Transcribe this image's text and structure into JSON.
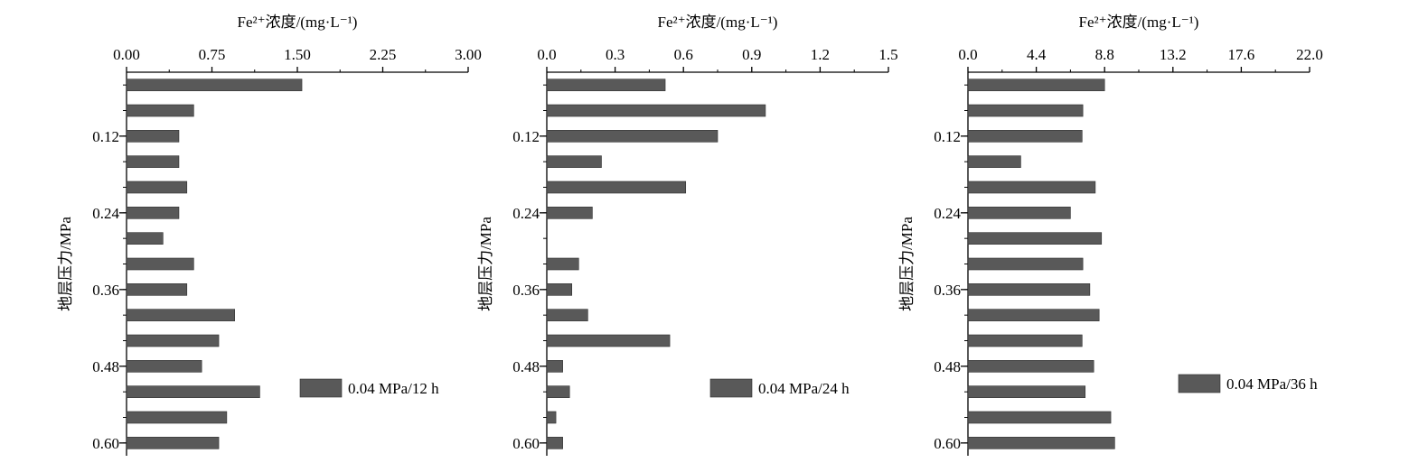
{
  "chart_data": [
    {
      "type": "bar",
      "orientation": "horizontal",
      "xlabel": "Fe²⁺浓度/(mg·L⁻¹)",
      "ylabel": "地层压力/MPa",
      "xlim": [
        0,
        3.0
      ],
      "xticks": [
        "0.00",
        "0.75",
        "1.50",
        "2.25",
        "3.00"
      ],
      "yticks": [
        "0.12",
        "0.24",
        "0.36",
        "0.48",
        "0.60"
      ],
      "ylim": [
        0.02,
        0.62
      ],
      "categories": [
        0.04,
        0.08,
        0.12,
        0.16,
        0.2,
        0.24,
        0.28,
        0.32,
        0.36,
        0.4,
        0.44,
        0.48,
        0.52,
        0.56,
        0.6
      ],
      "series": [
        {
          "name": "0.04 MPa/12 h",
          "values": [
            1.54,
            0.59,
            0.46,
            0.46,
            0.53,
            0.46,
            0.32,
            0.59,
            0.53,
            0.95,
            0.81,
            0.66,
            1.17,
            0.88,
            0.81
          ]
        }
      ],
      "legend_position": "lower-right"
    },
    {
      "type": "bar",
      "orientation": "horizontal",
      "xlabel": "Fe²⁺浓度/(mg·L⁻¹)",
      "ylabel": "地层压力/MPa",
      "xlim": [
        0,
        1.5
      ],
      "xticks": [
        "0.0",
        "0.3",
        "0.6",
        "0.9",
        "1.2",
        "1.5"
      ],
      "yticks": [
        "0.12",
        "0.24",
        "0.36",
        "0.48",
        "0.60"
      ],
      "ylim": [
        0.02,
        0.62
      ],
      "categories": [
        0.04,
        0.08,
        0.12,
        0.16,
        0.2,
        0.24,
        0.28,
        0.32,
        0.36,
        0.4,
        0.44,
        0.48,
        0.52,
        0.56,
        0.6
      ],
      "series": [
        {
          "name": "0.04 MPa/24 h",
          "values": [
            0.52,
            0.96,
            0.75,
            0.24,
            0.61,
            0.2,
            null,
            0.14,
            0.11,
            0.18,
            0.54,
            0.07,
            0.1,
            0.04,
            0.07
          ]
        }
      ],
      "legend_position": "lower-right"
    },
    {
      "type": "bar",
      "orientation": "horizontal",
      "xlabel": "Fe²⁺浓度/(mg·L⁻¹)",
      "ylabel": "地层压力/MPa",
      "xlim": [
        0,
        22.0
      ],
      "xticks": [
        "0.0",
        "4.4",
        "8.8",
        "13.2",
        "17.6",
        "22.0"
      ],
      "yticks": [
        "0.12",
        "0.24",
        "0.36",
        "0.48",
        "0.60"
      ],
      "ylim": [
        0.02,
        0.62
      ],
      "categories": [
        0.04,
        0.08,
        0.12,
        0.16,
        0.2,
        0.24,
        0.28,
        0.32,
        0.36,
        0.4,
        0.44,
        0.48,
        0.52,
        0.56,
        0.6
      ],
      "series": [
        {
          "name": "0.04 MPa/36 h",
          "values": [
            8.8,
            7.4,
            7.35,
            3.4,
            8.2,
            6.6,
            8.6,
            7.4,
            7.85,
            8.45,
            7.35,
            8.1,
            7.55,
            9.2,
            9.45
          ]
        }
      ],
      "legend_position": "lower-right"
    }
  ],
  "colors": {
    "bar": "#595959",
    "bar_edge": "#2f2f2f",
    "axis": "#000000"
  }
}
